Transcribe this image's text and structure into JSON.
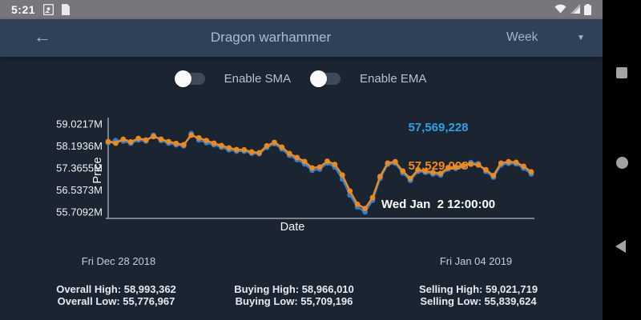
{
  "status_bar": {
    "time": "5:21",
    "icons": [
      "screenshot-icon",
      "file-icon",
      "wifi-icon",
      "cell-signal-icon",
      "battery-icon"
    ]
  },
  "app_bar": {
    "back_glyph": "←",
    "title": "Dragon warhammer",
    "period_selected": "Week",
    "caret_glyph": "▼"
  },
  "toggles": [
    {
      "label": "Enable SMA",
      "enabled": false
    },
    {
      "label": "Enable EMA",
      "enabled": false
    }
  ],
  "tooltip": {
    "buying_value": "57,569,228",
    "selling_value": "57,529,008",
    "timestamp": "Wed Jan  2 12:00:00"
  },
  "chart_data": {
    "type": "line",
    "xlabel": "Date",
    "ylabel": "Price",
    "unit": "millions of gp",
    "grid": false,
    "legend": "none (series identified by tooltip colors)",
    "y_ticks": [
      {
        "label": "59.0217M",
        "value": 59.0217
      },
      {
        "label": "58.1936M",
        "value": 58.1936
      },
      {
        "label": "57.3655M",
        "value": 57.3655
      },
      {
        "label": "56.5373M",
        "value": 56.5373
      },
      {
        "label": "55.7092M",
        "value": 55.7092
      }
    ],
    "x_start_label": "Fri Dec 28 2018",
    "x_end_label": "Fri Jan 04 2019",
    "series": [
      {
        "name": "Buying",
        "color": "#2e7fd4",
        "values": [
          58.32,
          58.4,
          58.38,
          58.3,
          58.42,
          58.38,
          58.6,
          58.4,
          58.3,
          58.24,
          58.2,
          58.66,
          58.42,
          58.32,
          58.24,
          58.15,
          58.05,
          58.0,
          58.0,
          57.92,
          57.9,
          58.14,
          58.28,
          58.08,
          57.84,
          57.68,
          57.52,
          57.28,
          57.32,
          57.55,
          57.4,
          56.95,
          56.35,
          55.9,
          55.71,
          56.15,
          56.98,
          57.5,
          57.55,
          57.18,
          56.9,
          57.24,
          57.2,
          57.14,
          57.1,
          57.33,
          57.35,
          57.42,
          57.57,
          57.53,
          57.24,
          57.02,
          57.48,
          57.54,
          57.52,
          57.36,
          57.14
        ]
      },
      {
        "name": "Selling",
        "color": "#ee8a1b",
        "values": [
          58.36,
          58.3,
          58.45,
          58.35,
          58.48,
          58.42,
          58.55,
          58.45,
          58.36,
          58.29,
          58.24,
          58.6,
          58.5,
          58.4,
          58.3,
          58.21,
          58.12,
          58.06,
          58.05,
          57.97,
          57.94,
          58.2,
          58.33,
          58.15,
          57.91,
          57.76,
          57.61,
          57.37,
          57.4,
          57.62,
          57.5,
          57.1,
          56.5,
          56.0,
          55.84,
          56.25,
          57.05,
          57.55,
          57.6,
          57.25,
          56.97,
          57.3,
          57.25,
          57.2,
          57.16,
          57.38,
          57.4,
          57.46,
          57.51,
          57.48,
          57.3,
          57.08,
          57.55,
          57.6,
          57.58,
          57.43,
          57.22
        ]
      }
    ]
  },
  "footer": {
    "start_date": "Fri Dec 28 2018",
    "end_date": "Fri Jan 04 2019",
    "stats": [
      {
        "line1": "Overall High: 58,993,362",
        "line2": "Overall Low: 55,776,967"
      },
      {
        "line1": "Buying High: 58,966,010",
        "line2": "Buying Low: 55,709,196"
      },
      {
        "line1": "Selling High: 59,021,719",
        "line2": "Selling Low: 55,839,624"
      }
    ]
  },
  "colors": {
    "background": "#1b2531",
    "app_bar": "#2e4156",
    "status_bar": "#76767b",
    "nav_bar": "#000000",
    "buying_series": "#2e7fd4",
    "selling_series": "#ee8a1b",
    "tooltip_buying_text": "#2e9fe8",
    "tooltip_selling_text": "#ee8a1b",
    "axis": "#9aa0a6"
  }
}
